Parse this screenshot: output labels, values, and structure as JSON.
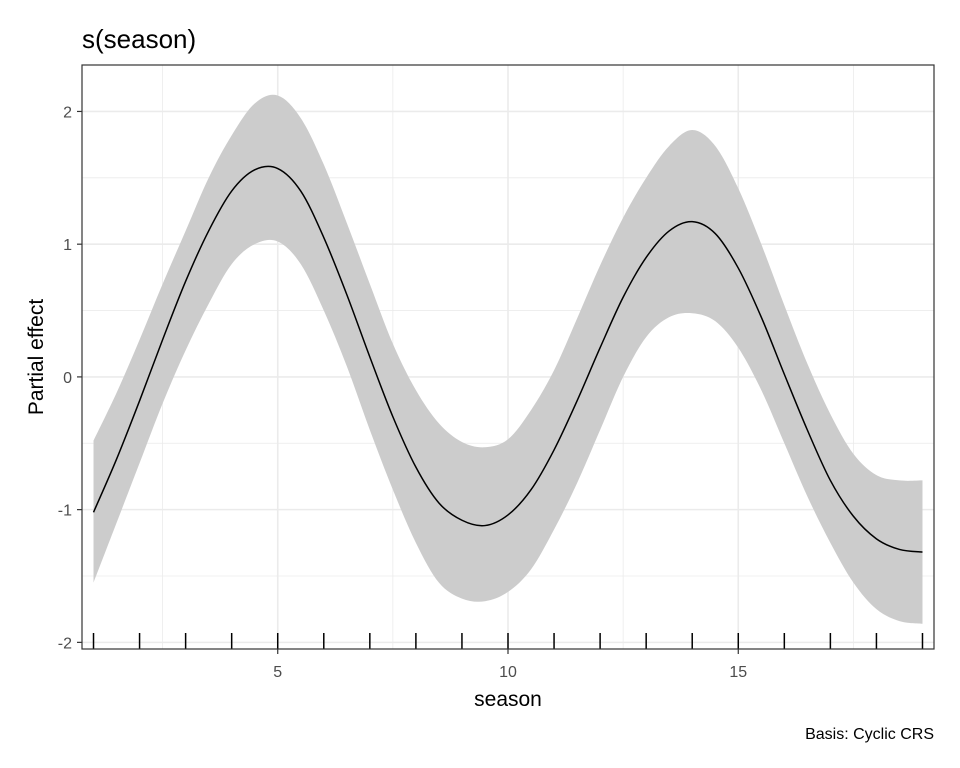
{
  "chart_data": {
    "type": "line",
    "title": "s(season)",
    "xlabel": "season",
    "ylabel": "Partial effect",
    "caption": "Basis: Cyclic CRS",
    "xlim": [
      0.75,
      19.25
    ],
    "ylim": [
      -2.05,
      2.35
    ],
    "x_ticks": [
      5,
      10,
      15
    ],
    "y_ticks": [
      -2,
      -1,
      0,
      1,
      2
    ],
    "x_tick_labels": [
      "5",
      "10",
      "15"
    ],
    "y_tick_labels": [
      "-2",
      "-1",
      "0",
      "1",
      "2"
    ],
    "grid": true,
    "rug": [
      1,
      2,
      3,
      4,
      5,
      6,
      7,
      8,
      9,
      10,
      11,
      12,
      13,
      14,
      15,
      16,
      17,
      18,
      19
    ],
    "colors": {
      "line": "#000000",
      "band": "#cccccc",
      "grid": "#ebebeb",
      "axis": "#333333"
    },
    "series": [
      {
        "x": [
          1,
          1.5,
          2,
          2.5,
          3,
          3.5,
          4,
          4.5,
          5,
          5.5,
          6,
          6.5,
          7,
          7.5,
          8,
          8.5,
          9,
          9.5,
          10,
          10.5,
          11,
          11.5,
          12,
          12.5,
          13,
          13.5,
          14,
          14.5,
          15,
          15.5,
          16,
          16.5,
          17,
          17.5,
          18,
          18.5,
          19
        ],
        "y": [
          -1.02,
          -0.62,
          -0.18,
          0.28,
          0.72,
          1.1,
          1.4,
          1.56,
          1.57,
          1.4,
          1.05,
          0.62,
          0.15,
          -0.3,
          -0.68,
          -0.95,
          -1.08,
          -1.12,
          -1.04,
          -0.85,
          -0.55,
          -0.18,
          0.22,
          0.6,
          0.9,
          1.1,
          1.17,
          1.08,
          0.82,
          0.45,
          0.02,
          -0.4,
          -0.78,
          -1.05,
          -1.22,
          -1.3,
          -1.32
        ],
        "lower": [
          -1.55,
          -1.1,
          -0.65,
          -0.2,
          0.2,
          0.55,
          0.85,
          1.0,
          1.02,
          0.85,
          0.5,
          0.08,
          -0.4,
          -0.85,
          -1.25,
          -1.55,
          -1.67,
          -1.69,
          -1.62,
          -1.45,
          -1.15,
          -0.8,
          -0.4,
          0.0,
          0.3,
          0.45,
          0.48,
          0.42,
          0.22,
          -0.1,
          -0.5,
          -0.9,
          -1.25,
          -1.55,
          -1.75,
          -1.84,
          -1.86
        ],
        "upper": [
          -0.48,
          -0.12,
          0.28,
          0.7,
          1.1,
          1.5,
          1.82,
          2.06,
          2.12,
          1.95,
          1.6,
          1.16,
          0.7,
          0.25,
          -0.1,
          -0.35,
          -0.49,
          -0.53,
          -0.47,
          -0.25,
          0.05,
          0.44,
          0.84,
          1.2,
          1.5,
          1.74,
          1.86,
          1.74,
          1.42,
          1.0,
          0.54,
          0.1,
          -0.28,
          -0.58,
          -0.74,
          -0.78,
          -0.78
        ]
      }
    ]
  }
}
